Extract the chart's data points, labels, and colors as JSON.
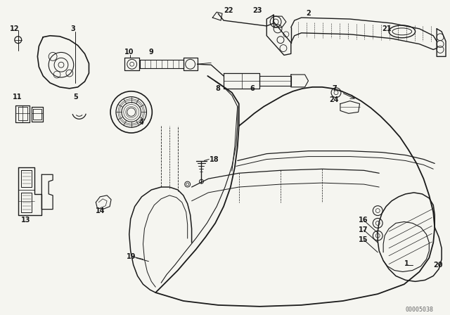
{
  "bg_color": "#f5f5f0",
  "line_color": "#1a1a1a",
  "watermark": "00005038",
  "figsize": [
    6.4,
    4.48
  ],
  "dpi": 100
}
